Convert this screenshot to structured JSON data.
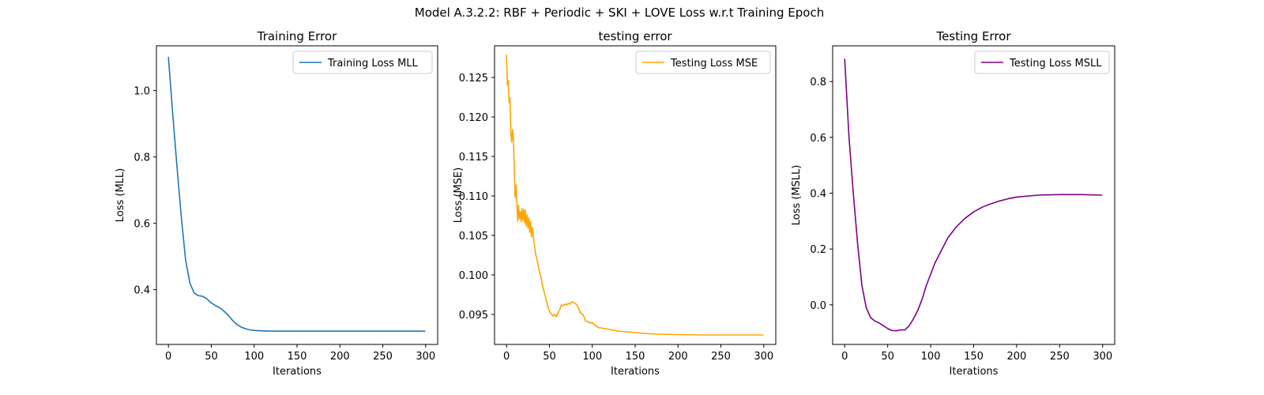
{
  "suptitle": "Model A.3.2.2: RBF + Periodic + SKI + LOVE Loss w.r.t Training Epoch",
  "chart_data": [
    {
      "type": "line",
      "title": "Training Error",
      "xlabel": "Iterations",
      "ylabel": "Loss (MLL)",
      "xlim": [
        -14,
        314
      ],
      "ylim": [
        0.235,
        1.135
      ],
      "xticks": [
        0,
        50,
        100,
        150,
        200,
        250,
        300
      ],
      "yticks": [
        0.4,
        0.6,
        0.8,
        1.0
      ],
      "ytick_labels": [
        "0.4",
        "0.6",
        "0.8",
        "1.0"
      ],
      "legend_position": "top-right",
      "grid": false,
      "series": [
        {
          "name": "Training Loss MLL",
          "color": "#1f77b4",
          "x": [
            0,
            5,
            10,
            15,
            20,
            25,
            30,
            35,
            40,
            45,
            50,
            55,
            60,
            65,
            70,
            75,
            80,
            85,
            90,
            95,
            100,
            110,
            120,
            130,
            150,
            175,
            200,
            250,
            299
          ],
          "y": [
            1.1,
            0.93,
            0.77,
            0.62,
            0.49,
            0.42,
            0.39,
            0.382,
            0.38,
            0.372,
            0.36,
            0.352,
            0.345,
            0.335,
            0.322,
            0.307,
            0.295,
            0.287,
            0.282,
            0.279,
            0.277,
            0.276,
            0.275,
            0.275,
            0.275,
            0.275,
            0.275,
            0.275,
            0.275
          ]
        }
      ]
    },
    {
      "type": "line",
      "title": "testing error",
      "xlabel": "Iterations",
      "ylabel": "Loss (MSE)",
      "xlim": [
        -14,
        314
      ],
      "ylim": [
        0.0912,
        0.129
      ],
      "xticks": [
        0,
        50,
        100,
        150,
        200,
        250,
        300
      ],
      "yticks": [
        0.095,
        0.1,
        0.105,
        0.11,
        0.115,
        0.12,
        0.125
      ],
      "ytick_labels": [
        "0.095",
        "0.100",
        "0.105",
        "0.110",
        "0.115",
        "0.120",
        "0.125"
      ],
      "legend_position": "top-right",
      "grid": false,
      "series": [
        {
          "name": "Testing Loss MSE",
          "color": "#ffa500",
          "x": [
            0,
            1,
            2,
            3,
            4,
            5,
            6,
            7,
            8,
            9,
            10,
            11,
            12,
            13,
            14,
            15,
            16,
            17,
            18,
            19,
            20,
            21,
            22,
            23,
            24,
            25,
            26,
            27,
            28,
            29,
            30,
            32,
            34,
            36,
            38,
            40,
            42,
            44,
            46,
            48,
            50,
            52,
            54,
            56,
            58,
            60,
            62,
            64,
            66,
            68,
            70,
            72,
            74,
            76,
            78,
            80,
            82,
            84,
            86,
            88,
            90,
            92,
            94,
            96,
            98,
            100,
            102,
            104,
            106,
            108,
            110,
            115,
            120,
            125,
            130,
            140,
            150,
            160,
            175,
            200,
            225,
            250,
            275,
            299
          ],
          "y": [
            0.1278,
            0.124,
            0.1246,
            0.1218,
            0.1224,
            0.118,
            0.1168,
            0.1184,
            0.1172,
            0.1138,
            0.1098,
            0.1114,
            0.1095,
            0.1068,
            0.1088,
            0.1071,
            0.108,
            0.1067,
            0.1084,
            0.1069,
            0.1083,
            0.1066,
            0.1082,
            0.1062,
            0.1076,
            0.1059,
            0.1072,
            0.1054,
            0.1068,
            0.1048,
            0.106,
            0.1042,
            0.1026,
            0.1018,
            0.1006,
            0.0998,
            0.0986,
            0.0978,
            0.097,
            0.096,
            0.0954,
            0.0951,
            0.0948,
            0.095,
            0.0947,
            0.0952,
            0.0956,
            0.0962,
            0.0961,
            0.0963,
            0.0962,
            0.0964,
            0.0963,
            0.0966,
            0.0965,
            0.0964,
            0.0962,
            0.0958,
            0.0952,
            0.0951,
            0.0948,
            0.0942,
            0.0941,
            0.094,
            0.0939,
            0.094,
            0.0937,
            0.0936,
            0.0934,
            0.0933,
            0.0933,
            0.0932,
            0.0931,
            0.093,
            0.0929,
            0.0928,
            0.0927,
            0.0926,
            0.0925,
            0.09245,
            0.0924,
            0.0924,
            0.0924,
            0.0924
          ]
        }
      ]
    },
    {
      "type": "line",
      "title": "Testing Error",
      "xlabel": "Iterations",
      "ylabel": "Loss (MSLL)",
      "xlim": [
        -14,
        314
      ],
      "ylim": [
        -0.142,
        0.928
      ],
      "xticks": [
        0,
        50,
        100,
        150,
        200,
        250,
        300
      ],
      "yticks": [
        0.0,
        0.2,
        0.4,
        0.6,
        0.8
      ],
      "ytick_labels": [
        "0.0",
        "0.2",
        "0.4",
        "0.6",
        "0.8"
      ],
      "legend_position": "top-right",
      "grid": false,
      "series": [
        {
          "name": "Testing Loss MSLL",
          "color": "#800080",
          "x": [
            0,
            5,
            10,
            15,
            20,
            25,
            30,
            35,
            40,
            45,
            50,
            55,
            60,
            65,
            70,
            75,
            80,
            85,
            90,
            95,
            100,
            105,
            110,
            120,
            130,
            140,
            150,
            160,
            170,
            180,
            190,
            200,
            225,
            250,
            275,
            299
          ],
          "y": [
            0.88,
            0.6,
            0.4,
            0.22,
            0.07,
            -0.01,
            -0.045,
            -0.058,
            -0.065,
            -0.075,
            -0.085,
            -0.092,
            -0.093,
            -0.09,
            -0.09,
            -0.075,
            -0.05,
            -0.02,
            0.02,
            0.07,
            0.11,
            0.15,
            0.18,
            0.24,
            0.28,
            0.31,
            0.333,
            0.35,
            0.362,
            0.372,
            0.38,
            0.386,
            0.393,
            0.395,
            0.395,
            0.393
          ]
        }
      ]
    }
  ]
}
